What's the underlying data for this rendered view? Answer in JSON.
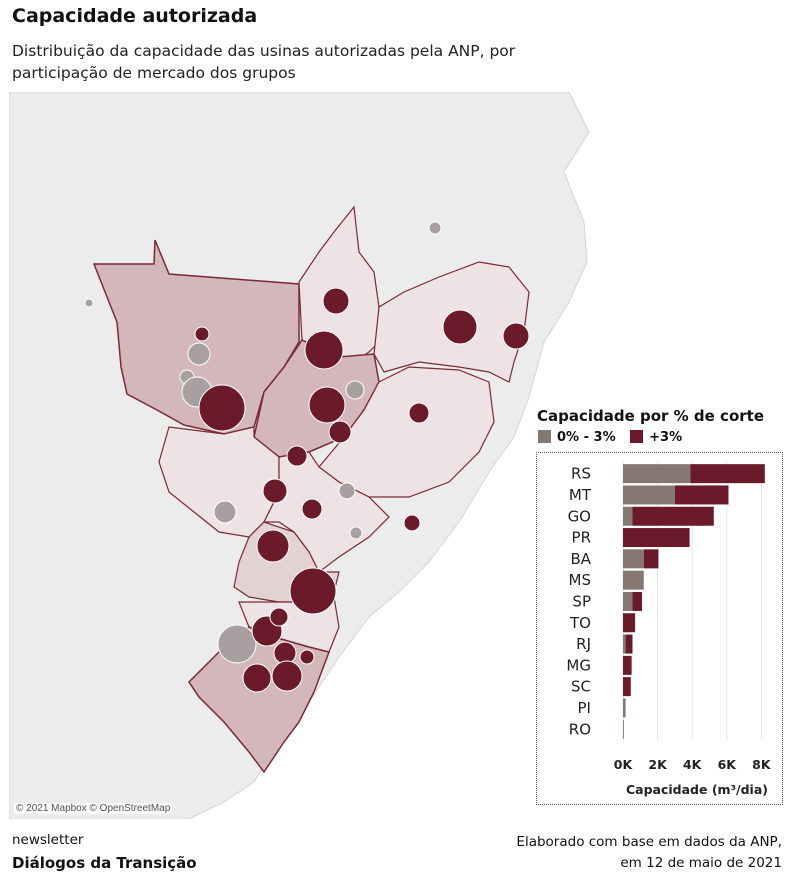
{
  "title": "Capacidade autorizada",
  "subtitle": "Distribuição da capacidade das usinas autorizadas pela ANP, por participação de mercado dos grupos",
  "map_attribution": "© 2021 Mapbox © OpenStreetMap",
  "legend": {
    "title": "Capacidade por % de corte",
    "items": [
      {
        "label": "0% - 3%",
        "color": "#857870"
      },
      {
        "label": "+3%",
        "color": "#6b1a2a"
      }
    ]
  },
  "chart_data": {
    "type": "bar",
    "orientation": "horizontal",
    "stacked": true,
    "categories": [
      "RS",
      "MT",
      "GO",
      "PR",
      "BA",
      "MS",
      "SP",
      "TO",
      "RJ",
      "MG",
      "SC",
      "PI",
      "RO"
    ],
    "series": [
      {
        "name": "0% - 3%",
        "color": "#857870",
        "values": [
          3900,
          3000,
          550,
          0,
          1200,
          1200,
          550,
          0,
          150,
          0,
          0,
          150,
          50
        ]
      },
      {
        "name": "+3%",
        "color": "#6b1a2a",
        "values": [
          4300,
          3100,
          4700,
          3850,
          850,
          0,
          550,
          700,
          400,
          500,
          450,
          0,
          0
        ]
      }
    ],
    "xlabel": "Capacidade (m³/dia)",
    "ylabel": "",
    "xlim": [
      0,
      8500
    ],
    "xticks": [
      {
        "v": 0,
        "label": "0K"
      },
      {
        "v": 2000,
        "label": "2K"
      },
      {
        "v": 4000,
        "label": "4K"
      },
      {
        "v": 6000,
        "label": "6K"
      },
      {
        "v": 8000,
        "label": "8K"
      }
    ],
    "grid": true
  },
  "footer": {
    "newsletter_label": "newsletter",
    "brand": "Diálogos da Transição",
    "source_line1": "Elaborado com base em dados da ANP,",
    "source_line2": "em 12 de maio de 2021"
  }
}
